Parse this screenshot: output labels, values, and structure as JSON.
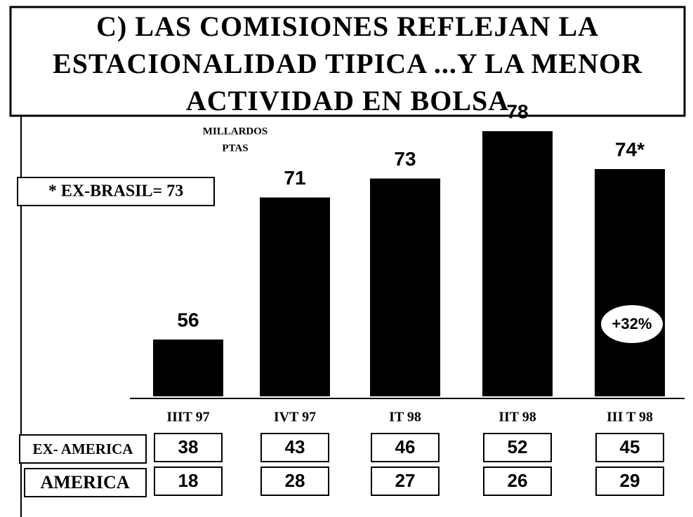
{
  "chart_data": {
    "type": "bar",
    "title": [
      "C) LAS COMISIONES REFLEJAN LA",
      "ESTACIONALIDAD TIPICA ...Y LA MENOR",
      "ACTIVIDAD EN BOLSA"
    ],
    "unit_label": [
      "MILLARDOS",
      "PTAS"
    ],
    "note": "* EX-BRASIL= 73",
    "annotation": "+32%",
    "categories": [
      "IIIT 97",
      "IVT 97",
      "IT 98",
      "IIT 98",
      "III T 98"
    ],
    "values": [
      56,
      71,
      73,
      78,
      74
    ],
    "value_labels": [
      "56",
      "71",
      "73",
      "78",
      "74*"
    ],
    "color": "#000000",
    "ylim": [
      50,
      78
    ],
    "table": {
      "rows": [
        {
          "name": "EX- AMERICA",
          "values": [
            38,
            43,
            46,
            52,
            45
          ]
        },
        {
          "name": "AMERICA",
          "values": [
            18,
            28,
            27,
            26,
            29
          ]
        }
      ]
    }
  }
}
